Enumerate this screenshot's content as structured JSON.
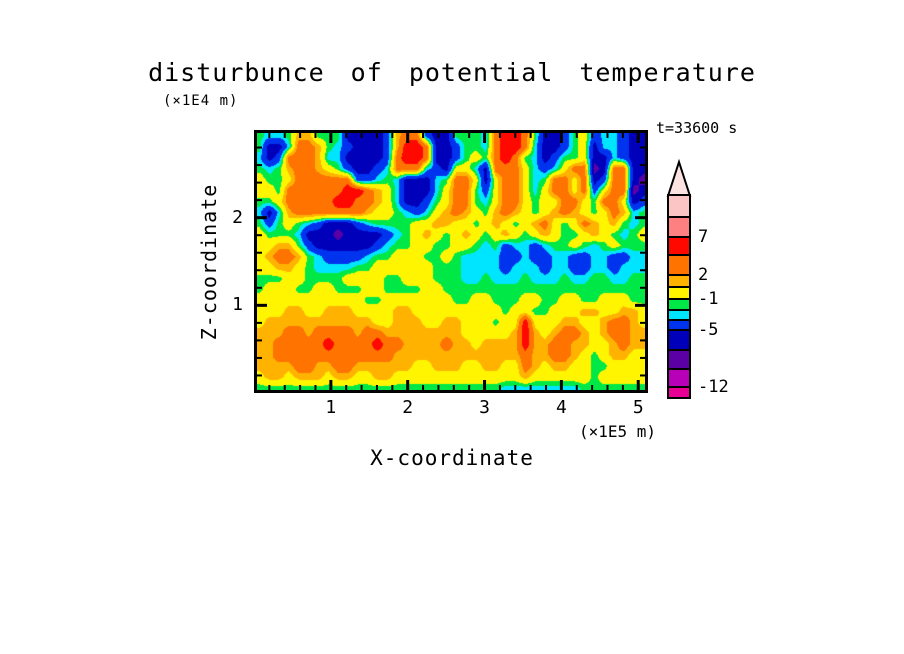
{
  "title": "disturbunce of potential temperature",
  "annotations": {
    "time_label": "t=33600 s"
  },
  "axes": {
    "x": {
      "label": "X-coordinate",
      "unit_label": "(×1E5 m)",
      "range": [
        0,
        5.127
      ],
      "major_ticks": [
        1,
        2,
        3,
        4,
        5
      ],
      "minor_tick_step": 0.2
    },
    "y": {
      "label": "Z-coordinate",
      "unit_label": "(×1E4 m)",
      "range": [
        0,
        3.0
      ],
      "major_ticks": [
        1,
        2
      ],
      "minor_tick_step": 0.2
    }
  },
  "colorbar": {
    "colors_top_to_bottom": [
      "#FBC5C5",
      "#FF8080",
      "#FF0800",
      "#FF7300",
      "#FFB300",
      "#FFF500",
      "#00E845",
      "#00E5FF",
      "#0033EE",
      "#0000BB",
      "#5A00A5",
      "#B700B7",
      "#E80095"
    ],
    "arrow_color": "#FDE2E2",
    "labels": [
      {
        "text": "7",
        "boundary_index": 2
      },
      {
        "text": "2",
        "boundary_index": 4
      },
      {
        "text": "-1",
        "boundary_index": 6
      },
      {
        "text": "-5",
        "boundary_index": 9
      },
      {
        "text": "-12",
        "boundary_index": 12
      }
    ]
  },
  "chart_data": {
    "type": "heatmap",
    "title": "disturbunce of potential temperature",
    "xlabel": "X-coordinate",
    "ylabel": "Z-coordinate",
    "x_unit": "×1E5 m",
    "y_unit": "×1E4 m",
    "x_range": [
      0,
      5.127
    ],
    "y_range": [
      0,
      3.0
    ],
    "time_s": 33600,
    "colorbar_tick_values": [
      7,
      2,
      -1,
      -5,
      -12
    ],
    "color_thresholds": [
      -12,
      -9,
      -7,
      -5,
      -3,
      -2,
      -1,
      0.8,
      2,
      4,
      7,
      10
    ],
    "colors_low_to_high": [
      "#E80095",
      "#B700B7",
      "#5A00A5",
      "#0000BB",
      "#0033EE",
      "#00E5FF",
      "#00E845",
      "#FFF500",
      "#FFB300",
      "#FF7300",
      "#FF0800",
      "#FF8080",
      "#FBC5C5"
    ],
    "values_layout": "24 rows (top z=3 to bottom z=0) x 40 cols (left x=0 to right x=5.127)",
    "values": [
      [
        -1.5,
        -2.5,
        -2.5,
        -1.5,
        1.5,
        1.5,
        -1.5,
        -1.5,
        -1.5,
        -6,
        -6,
        -6,
        -6,
        -4,
        1.5,
        3,
        3,
        -4,
        -6,
        -6,
        -1.5,
        -1.5,
        -1.5,
        -2.5,
        3,
        5.5,
        5.5,
        3,
        -1.5,
        -6,
        -6,
        -4,
        -1.5,
        0,
        -4,
        -2.5,
        -2.5,
        -4,
        -6,
        -6
      ],
      [
        -1.5,
        -6,
        -6,
        -2.5,
        3,
        3,
        1.5,
        -1.5,
        -2.5,
        -4,
        -6,
        -6,
        -6,
        -4,
        1.5,
        5.5,
        5.5,
        3,
        -6,
        -6,
        -4,
        -1.5,
        -1.5,
        -2.5,
        3,
        5.5,
        5.5,
        3,
        -2.5,
        -6,
        -6,
        -4,
        -1.5,
        0,
        -6,
        -2.5,
        -2.5,
        -4,
        -6,
        -6
      ],
      [
        -2.5,
        -6,
        -4,
        3,
        3,
        3,
        1.5,
        -2.5,
        -2.5,
        -6,
        -6,
        -6,
        -6,
        -4,
        3,
        5.5,
        5.5,
        3,
        -6,
        -6,
        -4,
        -1.5,
        0,
        -1.5,
        3,
        5.5,
        3,
        -1.5,
        -2.5,
        -6,
        -4,
        -1.5,
        -1.5,
        0,
        -6,
        -6,
        -2.5,
        -4,
        -6,
        -6
      ],
      [
        -1.5,
        -2.5,
        -1.5,
        1.5,
        3,
        3,
        1.5,
        0,
        -1.5,
        -4,
        -6,
        -6,
        -4,
        -2.5,
        3,
        3,
        3,
        -2.5,
        -4,
        -6,
        0,
        0,
        -2.5,
        -6,
        3,
        3,
        3,
        0,
        -2.5,
        -4,
        -2.5,
        0,
        3,
        3,
        -8,
        -6,
        3,
        3,
        -6,
        -6
      ],
      [
        0,
        -1.5,
        -1.5,
        0,
        3,
        3,
        3,
        3,
        3,
        3,
        -4,
        -4,
        -2.5,
        -1.5,
        -2.5,
        -6,
        -6,
        -6,
        -2.5,
        -1.5,
        3,
        3,
        0,
        -6,
        0,
        3,
        3,
        0,
        -2.5,
        -1.5,
        3,
        3,
        0,
        3,
        -6,
        -4,
        3,
        3,
        -6,
        -8
      ],
      [
        0,
        0,
        -1.5,
        3,
        3,
        3,
        3,
        3,
        3,
        5.5,
        5.5,
        3,
        1.5,
        0,
        -2.5,
        -6,
        -6,
        -6,
        -2.5,
        0,
        3,
        3,
        -1.5,
        -4,
        0,
        3,
        3,
        0,
        -2.5,
        0,
        3,
        3,
        0,
        3,
        -4,
        0,
        3,
        3,
        -8,
        -6
      ],
      [
        -1.5,
        -1.5,
        0,
        3,
        3,
        3,
        3,
        3,
        5.5,
        5.5,
        3,
        3,
        1.5,
        0,
        -2.5,
        -6,
        -6,
        -4,
        -1.5,
        0,
        3,
        3,
        -1.5,
        -2.5,
        0,
        3,
        3,
        0,
        -1.5,
        0,
        0,
        3,
        3,
        0,
        -1.5,
        3,
        3,
        0,
        -6,
        -4
      ],
      [
        -2.5,
        -6,
        -2.5,
        1.5,
        3,
        3,
        3,
        3,
        3,
        3,
        3,
        1.5,
        0,
        0,
        -1.5,
        -2.5,
        -4,
        -2.5,
        0,
        1.5,
        3,
        1.5,
        0,
        -1.5,
        1.5,
        3,
        1.5,
        0,
        -1.5,
        0,
        1.5,
        3,
        1.5,
        0,
        -1.5,
        0,
        3,
        1.5,
        -2.5,
        -1.5
      ],
      [
        -1.5,
        -4,
        -1.5,
        0,
        -1.5,
        -2.5,
        -4,
        -6,
        -6,
        -6,
        -4,
        -2.5,
        -1.5,
        -1.5,
        -1.5,
        -1.5,
        0,
        0,
        1.5,
        1.5,
        0,
        0,
        -1.5,
        0,
        1.5,
        0,
        -1.5,
        0,
        1.5,
        3,
        0,
        -1.5,
        0,
        3,
        1.5,
        0,
        1.5,
        -1.5,
        -2.5,
        -1.5
      ],
      [
        0,
        -1.5,
        -1.5,
        -1.5,
        -2.5,
        -6,
        -6,
        -6,
        -8,
        -6,
        -6,
        -6,
        -6,
        -4,
        -2.5,
        -1.5,
        0,
        1.5,
        0,
        -1.5,
        0,
        1.5,
        0,
        -1.5,
        0,
        1.5,
        0,
        -1.5,
        0,
        1.5,
        0,
        -1.5,
        -1.5,
        0,
        1.5,
        0,
        -1.5,
        -2.5,
        -1.5,
        0
      ],
      [
        0,
        0,
        1.5,
        1.5,
        -1.5,
        -4,
        -6,
        -6,
        -6,
        -6,
        -6,
        -6,
        -4,
        -2.5,
        -1.5,
        -1.5,
        0,
        0,
        -1.5,
        -1.5,
        0,
        0,
        -1.5,
        -2.5,
        -1.5,
        -4,
        -2.5,
        -2.5,
        -4,
        -2.5,
        -1.5,
        -1.5,
        0,
        -1.5,
        -2.5,
        -1.5,
        0,
        -1.5,
        -1.5,
        -1.5
      ],
      [
        0,
        1.5,
        3,
        3,
        1.5,
        -1.5,
        -2.5,
        -4,
        -4,
        -4,
        -4,
        -2.5,
        -1.5,
        -1.5,
        0,
        0,
        0,
        -1.5,
        -1.5,
        0,
        -1.5,
        -2.5,
        -2.5,
        -2.5,
        -2.5,
        -4,
        -4,
        -2.5,
        -4,
        -4,
        -2.5,
        -2.5,
        -4,
        -4,
        -2.5,
        -2.5,
        -4,
        -4,
        -2.5,
        -2.5
      ],
      [
        0,
        0,
        1.5,
        1.5,
        0,
        -1.5,
        -2.5,
        -2.5,
        -2.5,
        -2.5,
        -1.5,
        -1.5,
        0,
        0,
        0,
        0,
        0,
        0,
        -1.5,
        -1.5,
        -1.5,
        -2.5,
        -2.5,
        -2.5,
        -2.5,
        -4,
        -2.5,
        -2.5,
        -2.5,
        -4,
        -2.5,
        -2.5,
        -4,
        -4,
        -2.5,
        -2.5,
        -4,
        -2.5,
        -2.5,
        -2.5
      ],
      [
        -1.5,
        -1.5,
        -1.5,
        0,
        0,
        -1.5,
        -1.5,
        -1.5,
        -1.5,
        0,
        0,
        0,
        0,
        -1.5,
        -1.5,
        0,
        0,
        0,
        -1.5,
        -1.5,
        -1.5,
        -2.5,
        -2.5,
        -1.5,
        -2.5,
        -2.5,
        -2.5,
        -1.5,
        -2.5,
        -2.5,
        -2.5,
        -1.5,
        -2.5,
        -2.5,
        -1.5,
        -1.5,
        -2.5,
        -2.5,
        -1.5,
        -1.5
      ],
      [
        -1.5,
        0,
        0,
        0,
        -1.5,
        -1.5,
        0,
        0,
        -1.5,
        -1.5,
        -1.5,
        0,
        0,
        -1.5,
        -1.5,
        -1.5,
        -1.5,
        0,
        0,
        -1.5,
        -1.5,
        -1.5,
        -1.5,
        -1.5,
        -1.5,
        -1.5,
        -1.5,
        -1.5,
        -1.5,
        -1.5,
        -1.5,
        -1.5,
        -1.5,
        -1.5,
        -1.5,
        -1.5,
        -1.5,
        -1.5,
        -1.5,
        -1.5
      ],
      [
        0,
        0,
        0,
        0,
        0,
        0,
        0,
        0,
        0,
        0,
        0,
        -1.5,
        -1.5,
        0,
        0,
        0,
        0,
        0,
        0,
        0,
        -1.5,
        -1.5,
        0,
        0,
        -1.5,
        -1.5,
        -1.5,
        0,
        0,
        -1.5,
        -1.5,
        0,
        0,
        -1.5,
        -1.5,
        0,
        0,
        0,
        -1.5,
        -1.5
      ],
      [
        0,
        0,
        0,
        1.5,
        1.5,
        0,
        0,
        1.5,
        1.5,
        1.5,
        0,
        0,
        0,
        0,
        1.5,
        1.5,
        0,
        0,
        0,
        0,
        0,
        0,
        0,
        0,
        0,
        -1.5,
        0,
        0,
        -1.5,
        -1.5,
        0,
        0,
        0,
        1.5,
        1.5,
        0,
        0,
        1.5,
        1.5,
        0
      ],
      [
        0,
        1.5,
        1.5,
        1.5,
        1.5,
        1.5,
        1.5,
        1.5,
        1.5,
        1.5,
        1.5,
        1.5,
        0,
        0,
        1.5,
        1.5,
        1.5,
        0,
        0,
        1.5,
        1.5,
        0,
        0,
        0,
        -1.5,
        0,
        0,
        5.5,
        0,
        0,
        0,
        1.5,
        1.5,
        0,
        0,
        1.5,
        3,
        3,
        1.5,
        0
      ],
      [
        1.5,
        1.5,
        1.5,
        3,
        3,
        1.5,
        3,
        3,
        3,
        3,
        1.5,
        3,
        3,
        1.5,
        1.5,
        1.5,
        1.5,
        1.5,
        1.5,
        1.5,
        1.5,
        0,
        0,
        0,
        0,
        0,
        1.5,
        5.5,
        1.5,
        0,
        1.5,
        3,
        3,
        1.5,
        0,
        1.5,
        3,
        3,
        1.5,
        1.5
      ],
      [
        1.5,
        1.5,
        3,
        3,
        3,
        3,
        3,
        5.5,
        3,
        3,
        3,
        3,
        5.5,
        3,
        3,
        1.5,
        1.5,
        1.5,
        1.5,
        3,
        1.5,
        1.5,
        0,
        1.5,
        1.5,
        1.5,
        1.5,
        5.5,
        1.5,
        1.5,
        3,
        3,
        1.5,
        1.5,
        0,
        0,
        1.5,
        3,
        1.5,
        1.5
      ],
      [
        1.5,
        1.5,
        3,
        3,
        3,
        3,
        3,
        3,
        3,
        3,
        3,
        3,
        3,
        3,
        1.5,
        1.5,
        1.5,
        1.5,
        1.5,
        1.5,
        1.5,
        1.5,
        1.5,
        1.5,
        1.5,
        1.5,
        1.5,
        3,
        1.5,
        1.5,
        3,
        3,
        1.5,
        0,
        -1.5,
        0,
        1.5,
        1.5,
        0,
        0
      ],
      [
        1.5,
        1.5,
        1.5,
        1.5,
        3,
        3,
        1.5,
        1.5,
        3,
        3,
        1.5,
        1.5,
        1.5,
        1.5,
        1.5,
        1.5,
        0,
        0,
        1.5,
        1.5,
        1.5,
        0,
        0,
        1.5,
        1.5,
        0,
        0,
        3,
        1.5,
        0,
        1.5,
        1.5,
        0,
        0,
        -1.5,
        -1.5,
        0,
        0,
        0,
        0
      ],
      [
        0,
        1.5,
        1.5,
        0,
        1.5,
        1.5,
        1.5,
        0,
        1.5,
        1.5,
        0,
        0,
        1.5,
        1.5,
        0,
        0,
        0,
        0,
        0,
        0,
        0,
        0,
        0,
        0,
        0,
        0,
        0,
        1.5,
        0,
        0,
        0,
        0,
        0,
        0,
        -1.5,
        0,
        0,
        0,
        0,
        0
      ],
      [
        -1.5,
        -1.5,
        -1.5,
        -1.5,
        -1.5,
        -1.5,
        -1.5,
        -1.5,
        -1.5,
        -1.5,
        -1.5,
        -1.5,
        -1.5,
        -1.5,
        -1.5,
        -1.5,
        -1.5,
        -1.5,
        -1.5,
        -1.5,
        -1.5,
        -1.5,
        -1.5,
        -1.5,
        -1.5,
        -2.5,
        -2.5,
        -2.5,
        -2.5,
        -2.5,
        -2.5,
        -2.5,
        -2.5,
        -1.5,
        -1.5,
        -1.5,
        -1.5,
        -1.5,
        -1.5,
        -1.5
      ]
    ]
  }
}
